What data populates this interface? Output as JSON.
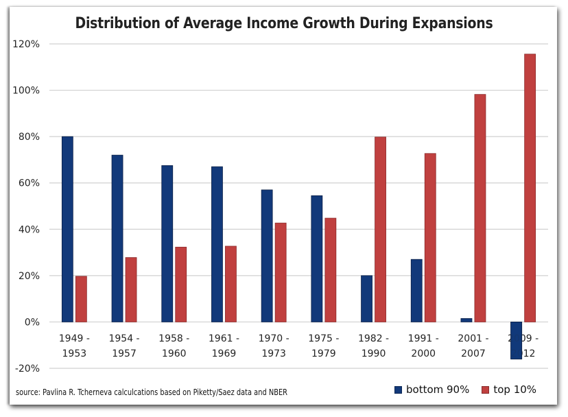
{
  "chart_data": {
    "type": "bar",
    "title": "Distribution of Average Income Growth During Expansions",
    "xlabel": "",
    "ylabel": "",
    "categories": [
      [
        "1949 -",
        "1953"
      ],
      [
        "1954 -",
        "1957"
      ],
      [
        "1958 -",
        "1960"
      ],
      [
        "1961 -",
        "1969"
      ],
      [
        "1970 -",
        "1973"
      ],
      [
        "1975 -",
        "1979"
      ],
      [
        "1982 -",
        "1990"
      ],
      [
        "1991 -",
        "2000"
      ],
      [
        "2001 -",
        "2007"
      ],
      [
        "2009 -",
        "2012"
      ]
    ],
    "series": [
      {
        "name": "bottom 90%",
        "color": "#12397a",
        "values": [
          80,
          72,
          67.5,
          67,
          57,
          54.5,
          20,
          27,
          1.5,
          -16
        ]
      },
      {
        "name": "top 10%",
        "color": "#c0403f",
        "values": [
          19.7,
          27.8,
          32.3,
          32.7,
          42.7,
          44.8,
          79.8,
          72.7,
          98.2,
          115.6
        ]
      }
    ],
    "ylim": [
      -20,
      120
    ],
    "yticks": [
      120,
      100,
      80,
      60,
      40,
      20,
      0,
      -20
    ],
    "ytick_labels": [
      "120%",
      "100%",
      "80%",
      "60%",
      "40%",
      "20%",
      "0%",
      "-20%"
    ],
    "grid": true,
    "legend_position": "bottom-right",
    "source_note": "source: Pavlina R. Tcherneva calculcations based on Piketty/Saez data and NBER"
  }
}
